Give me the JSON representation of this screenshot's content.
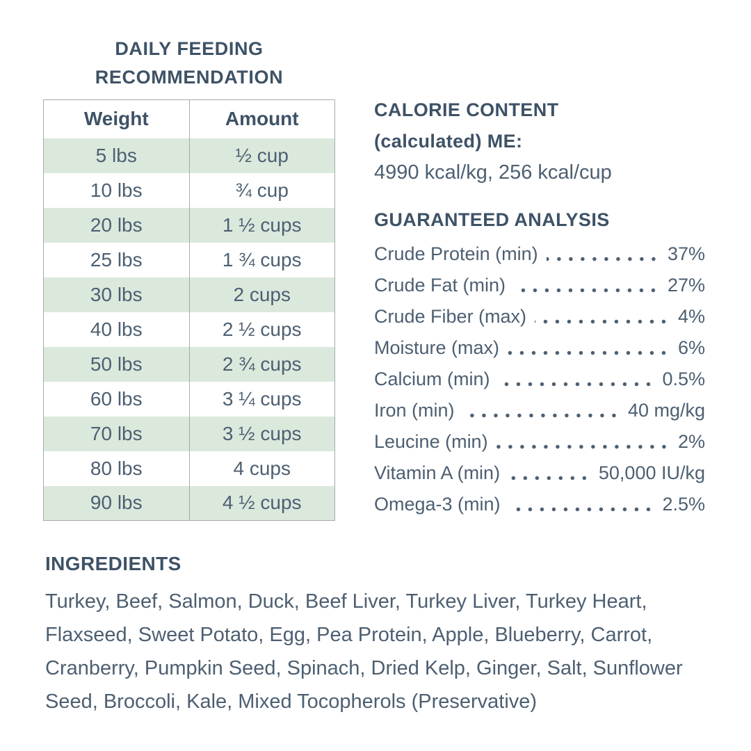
{
  "feeding": {
    "title": "DAILY FEEDING RECOMMENDATION",
    "table": {
      "headers": [
        "Weight",
        "Amount"
      ],
      "rows": [
        {
          "weight": "5 lbs",
          "amount": "½ cup"
        },
        {
          "weight": "10 lbs",
          "amount": "¾ cup"
        },
        {
          "weight": "20 lbs",
          "amount": "1 ½ cups"
        },
        {
          "weight": "25 lbs",
          "amount": "1 ¾ cups"
        },
        {
          "weight": "30 lbs",
          "amount": "2 cups"
        },
        {
          "weight": "40 lbs",
          "amount": "2 ½ cups"
        },
        {
          "weight": "50 lbs",
          "amount": "2 ¾ cups"
        },
        {
          "weight": "60 lbs",
          "amount": "3 ¼ cups"
        },
        {
          "weight": "70 lbs",
          "amount": "3 ½ cups"
        },
        {
          "weight": "80 lbs",
          "amount": "4 cups"
        },
        {
          "weight": "90 lbs",
          "amount": "4 ½ cups"
        }
      ]
    }
  },
  "calorie_content": {
    "heading_line1": "CALORIE CONTENT",
    "heading_line2": "(calculated) ME:",
    "value": "4990 kcal/kg, 256 kcal/cup"
  },
  "guaranteed_analysis": {
    "heading": "GUARANTEED ANALYSIS",
    "rows": [
      {
        "label": "Crude Protein (min)",
        "value": "37%"
      },
      {
        "label": "Crude Fat (min)",
        "value": "27%"
      },
      {
        "label": "Crude Fiber (max)",
        "value": "4%"
      },
      {
        "label": "Moisture (max)",
        "value": "6%"
      },
      {
        "label": "Calcium (min)",
        "value": "0.5%"
      },
      {
        "label": "Iron (min)",
        "value": "40 mg/kg"
      },
      {
        "label": "Leucine (min)",
        "value": "2%"
      },
      {
        "label": "Vitamin A (min)",
        "value": "50,000 IU/kg"
      },
      {
        "label": "Omega-3 (min)",
        "value": "2.5%"
      }
    ]
  },
  "ingredients": {
    "heading": "INGREDIENTS",
    "text": "Turkey, Beef, Salmon, Duck, Beef Liver, Turkey Liver, Turkey Heart, Flaxseed, Sweet Potato, Egg, Pea Protein, Apple, Blueberry, Carrot, Cranberry, Pumpkin Seed, Spinach, Dried Kelp, Ginger, Salt, Sunflower Seed, Broccoli, Kale, Mixed Tocopherols (Preservative)"
  },
  "colors": {
    "body_text": "#4d5f71",
    "heading_text": "#3e5266",
    "row_green": "#dbe9dd",
    "table_border": "#a5a9ad",
    "background": "#ffffff"
  }
}
